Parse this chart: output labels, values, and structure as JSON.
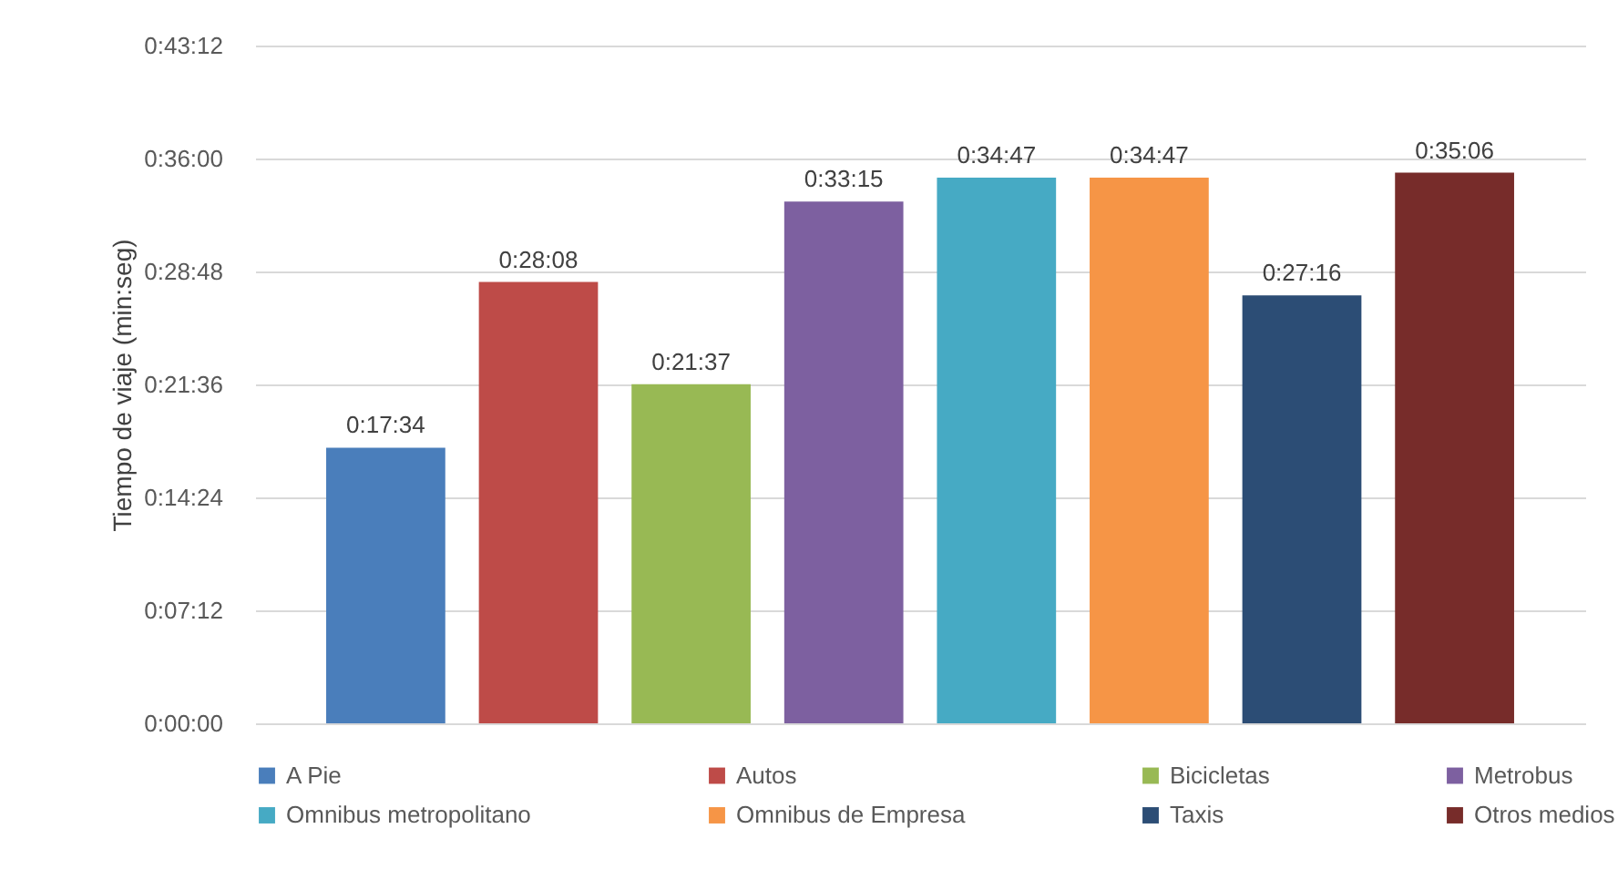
{
  "chart_data": {
    "type": "bar",
    "ylabel": "Tiempo de viaje (min:seg)",
    "categories": [
      null
    ],
    "series": [
      {
        "name": "A Pie",
        "color": "#4a7ebb",
        "values": [
          17.57
        ],
        "value_labels": [
          "0:17:34"
        ]
      },
      {
        "name": "Autos",
        "color": "#be4b48",
        "values": [
          28.13
        ],
        "value_labels": [
          "0:28:08"
        ]
      },
      {
        "name": "Bicicletas",
        "color": "#98b954",
        "values": [
          21.62
        ],
        "value_labels": [
          "0:21:37"
        ]
      },
      {
        "name": "Metrobus",
        "color": "#7d60a0",
        "values": [
          33.25
        ],
        "value_labels": [
          "0:33:15"
        ]
      },
      {
        "name": "Omnibus metropolitano",
        "color": "#46aac4",
        "values": [
          34.78
        ],
        "value_labels": [
          "0:34:47"
        ]
      },
      {
        "name": "Omnibus de Empresa",
        "color": "#f69546",
        "values": [
          34.78
        ],
        "value_labels": [
          "0:34:47"
        ]
      },
      {
        "name": "Taxis",
        "color": "#2c4d75",
        "values": [
          27.27
        ],
        "value_labels": [
          "0:27:16"
        ]
      },
      {
        "name": "Otros medios",
        "color": "#772c2a",
        "values": [
          35.1
        ],
        "value_labels": [
          "0:35:06"
        ]
      }
    ],
    "ylim": [
      0,
      43.2
    ],
    "yticks": [
      {
        "value": 0,
        "label": "0:00:00"
      },
      {
        "value": 7.2,
        "label": "0:07:12"
      },
      {
        "value": 14.4,
        "label": "0:14:24"
      },
      {
        "value": 21.6,
        "label": "0:21:36"
      },
      {
        "value": 28.8,
        "label": "0:28:48"
      },
      {
        "value": 36,
        "label": "0:36:00"
      },
      {
        "value": 43.2,
        "label": "0:43:12"
      }
    ],
    "grid": "y",
    "legend": "bottom",
    "tick_labels": "y"
  }
}
